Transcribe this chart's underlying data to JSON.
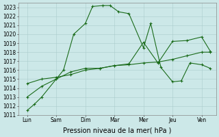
{
  "bg_color": "#cce8e8",
  "grid_color": "#aacccc",
  "line_color": "#1a6b1a",
  "x_labels": [
    "Lun",
    "Sam",
    "Dim",
    "Mar",
    "Mer",
    "Jeu",
    "Ven"
  ],
  "x_ticks": [
    0,
    1,
    2,
    3,
    4,
    5,
    6
  ],
  "ylim": [
    1011,
    1023.5
  ],
  "yticks": [
    1011,
    1012,
    1013,
    1014,
    1015,
    1016,
    1017,
    1018,
    1019,
    1020,
    1021,
    1022,
    1023
  ],
  "xlabel": "Pression niveau de la mer( hPa )",
  "xlabel_fontsize": 7,
  "tick_fontsize": 5.5,
  "line1_x": [
    0,
    0.25,
    0.5,
    1.0,
    1.25,
    1.6,
    2.0,
    2.25,
    2.6,
    2.85,
    3.15,
    3.5,
    4.0,
    4.25,
    4.6,
    5.0,
    5.3,
    5.6,
    6.0,
    6.3
  ],
  "line1_y": [
    1011.5,
    1012.2,
    1013.0,
    1015.0,
    1016.0,
    1020.0,
    1021.2,
    1023.1,
    1023.2,
    1023.2,
    1022.5,
    1022.3,
    1018.5,
    1021.2,
    1016.3,
    1014.7,
    1014.8,
    1016.8,
    1016.6,
    1016.2
  ],
  "line2_x": [
    0,
    0.5,
    1.0,
    1.5,
    2.0,
    2.5,
    3.0,
    3.5,
    4.0,
    4.5,
    5.0,
    5.5,
    6.0,
    6.3
  ],
  "line2_y": [
    1013.0,
    1014.2,
    1015.0,
    1015.8,
    1016.2,
    1016.2,
    1016.5,
    1016.6,
    1016.8,
    1016.9,
    1017.2,
    1017.6,
    1018.0,
    1018.0
  ],
  "line3_x": [
    0,
    0.5,
    1.0,
    1.5,
    2.0,
    2.5,
    3.0,
    3.5,
    4.0,
    4.5,
    5.0,
    5.5,
    6.0,
    6.3
  ],
  "line3_y": [
    1014.5,
    1015.0,
    1015.2,
    1015.5,
    1016.0,
    1016.2,
    1016.5,
    1016.7,
    1019.1,
    1016.8,
    1019.2,
    1019.3,
    1019.7,
    1018.1
  ]
}
